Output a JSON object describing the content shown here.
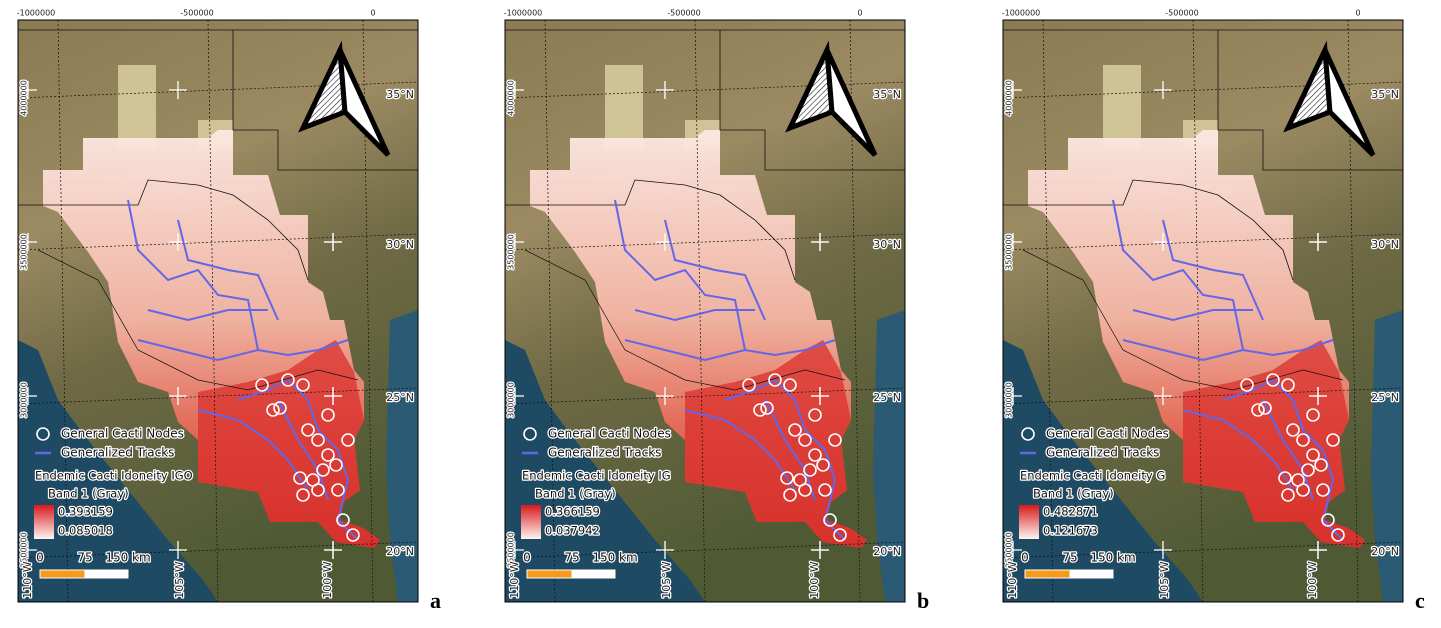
{
  "top_axis_labels": [
    -1000000,
    -500000,
    0
  ],
  "left_axis_labels": [
    4000000,
    3500000,
    3000000,
    2500000
  ],
  "latitude_labels": [
    "35°N",
    "30°N",
    "25°N",
    "20°N"
  ],
  "longitude_labels": [
    "110°W",
    "105°W",
    "100°W"
  ],
  "legend": {
    "nodes": "General Cacti Nodes",
    "tracks": "Generalized Tracks",
    "band": "Band 1 (Gray)"
  },
  "scale_bar": {
    "labels": [
      0,
      75,
      "150 km"
    ]
  },
  "panels": [
    {
      "label": "a",
      "legend_title": "Endemic Cacti Idoneity IGO",
      "max": "0.393159",
      "min": "0.085018"
    },
    {
      "label": "b",
      "legend_title": "Endemic Cacti Idoneity IG",
      "max": "0.366159",
      "min": "0.037942"
    },
    {
      "label": "c",
      "legend_title": "Endemic Cacti Idoneity G",
      "max": "0.482871",
      "min": "0.121673"
    }
  ]
}
